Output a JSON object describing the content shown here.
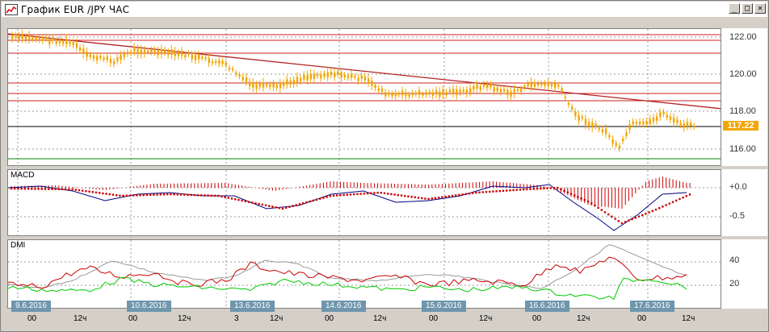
{
  "window": {
    "title": "График EUR /JPY  ЧАС",
    "buttons": [
      "_",
      "□",
      "✕"
    ]
  },
  "price_panel": {
    "axis_labels": [
      "122.00",
      "120.00",
      "118.00",
      "116.00"
    ],
    "current_price": "117.22"
  },
  "macd_panel": {
    "name": "MACD",
    "axis_labels": [
      "+0.0",
      "-0.5"
    ]
  },
  "dmi_panel": {
    "name": "DMI",
    "axis_labels": [
      "40",
      "20"
    ]
  },
  "date_labels": [
    "9.6.2016",
    "10.6.2016",
    "13.6.2016",
    "14.6.2016",
    "15.6.2016",
    "16.6.2016",
    "17.6.2016"
  ],
  "time_labels": [
    "00",
    "12ч",
    "00",
    "12ч",
    "3",
    "12ч",
    "00",
    "12ч",
    "00",
    "12ч",
    "00",
    "12ч",
    "00",
    "12ч"
  ],
  "colors": {
    "candle": "#f2a600",
    "trend": "#b22222",
    "level": "#cc2222",
    "price_line": "#000000",
    "support": "#008000",
    "macd_line": "#000080",
    "macd_signal": "#cc0000",
    "dmi_adx": "#999999",
    "dmi_plus": "#cc0000",
    "dmi_minus": "#00cc00"
  }
}
